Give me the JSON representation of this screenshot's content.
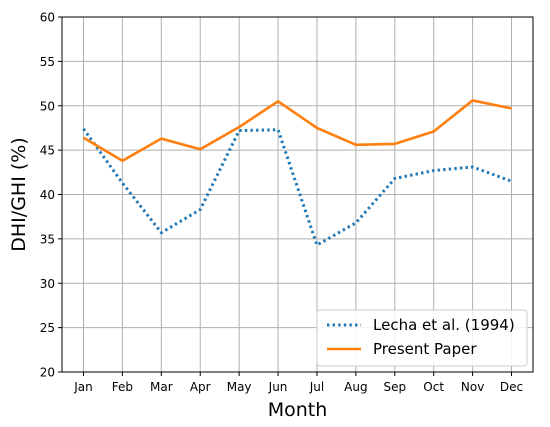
{
  "chart_data": {
    "type": "line",
    "xlabel": "Month",
    "ylabel": "DHI/GHI (%)",
    "categories": [
      "Jan",
      "Feb",
      "Mar",
      "Apr",
      "May",
      "Jun",
      "Jul",
      "Aug",
      "Sep",
      "Oct",
      "Nov",
      "Dec"
    ],
    "ylim": [
      20,
      60
    ],
    "yticks": [
      20,
      25,
      30,
      35,
      40,
      45,
      50,
      55,
      60
    ],
    "grid": true,
    "legend_position": "bottom-right",
    "series": [
      {
        "name": "Lecha et al. (1994)",
        "color": "#1f77b4",
        "style": "dotted",
        "values": [
          47.4,
          41.3,
          35.7,
          38.3,
          47.2,
          47.3,
          34.3,
          36.8,
          41.8,
          42.7,
          43.1,
          41.5
        ]
      },
      {
        "name": "Present Paper",
        "color": "#ff7f0e",
        "style": "solid",
        "values": [
          46.4,
          43.8,
          46.3,
          45.1,
          47.6,
          50.5,
          47.5,
          45.6,
          45.7,
          47.1,
          50.6,
          49.7
        ]
      }
    ]
  }
}
